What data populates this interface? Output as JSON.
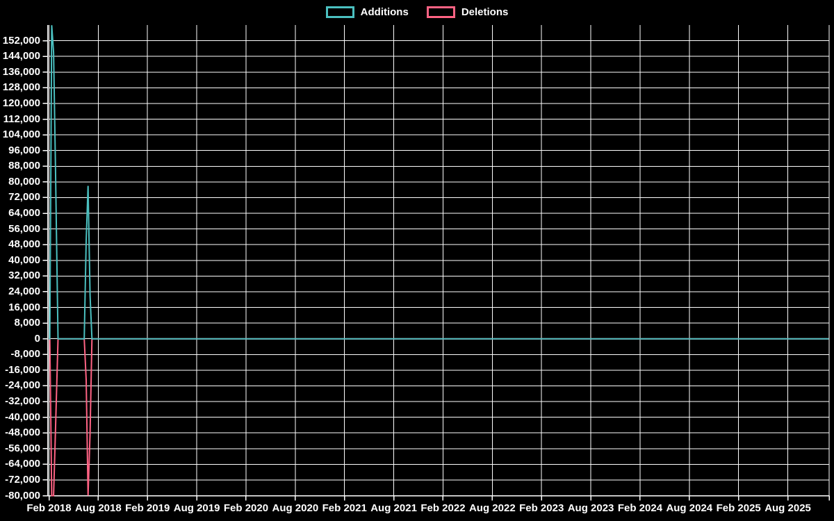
{
  "colors": {
    "background": "#000000",
    "grid": "#ffffff",
    "text": "#ffffff",
    "additions": "#4bc0c0",
    "deletions": "#ff6384"
  },
  "legend": {
    "items": [
      {
        "label": "Additions",
        "color": "#4bc0c0"
      },
      {
        "label": "Deletions",
        "color": "#ff6384"
      }
    ]
  },
  "chart_data": {
    "type": "line",
    "title": "",
    "legend_position": "top",
    "grid": true,
    "x_axis": {
      "start_date": "2018-02-01",
      "end_date": "2026-01-01",
      "tick_interval_months": 6,
      "tick_labels": [
        "Feb 2018",
        "Aug 2018",
        "Feb 2019",
        "Aug 2019",
        "Feb 2020",
        "Aug 2020",
        "Feb 2021",
        "Aug 2021",
        "Feb 2022",
        "Aug 2022",
        "Feb 2023",
        "Aug 2023",
        "Feb 2024",
        "Aug 2024",
        "Feb 2025",
        "Aug 2025"
      ]
    },
    "y_axis": {
      "min": -80000,
      "max": 160000,
      "tick_step": 8000,
      "tick_labels": [
        "152,000",
        "144,000",
        "136,000",
        "128,000",
        "120,000",
        "112,000",
        "104,000",
        "96,000",
        "88,000",
        "80,000",
        "72,000",
        "64,000",
        "56,000",
        "48,000",
        "40,000",
        "32,000",
        "24,000",
        "16,000",
        "8,000",
        "0",
        "-8,000",
        "-16,000",
        "-24,000",
        "-32,000",
        "-40,000",
        "-48,000",
        "-56,000",
        "-64,000",
        "-72,000",
        "-80,000"
      ]
    },
    "series": [
      {
        "name": "Deletions",
        "color": "#ff6384",
        "points": [
          {
            "date": "2018-02-01",
            "value": 0
          },
          {
            "date": "2018-02-04",
            "value": 0
          },
          {
            "date": "2018-02-11",
            "value": -83000
          },
          {
            "date": "2018-02-18",
            "value": -80000
          },
          {
            "date": "2018-02-25",
            "value": -47000
          },
          {
            "date": "2018-03-04",
            "value": 0
          },
          {
            "date": "2018-06-10",
            "value": 0
          },
          {
            "date": "2018-06-17",
            "value": -21000
          },
          {
            "date": "2018-06-24",
            "value": -83000
          },
          {
            "date": "2018-07-01",
            "value": -48000
          },
          {
            "date": "2018-07-08",
            "value": 0
          },
          {
            "date": "2026-01-01",
            "value": 0
          }
        ]
      },
      {
        "name": "Additions",
        "color": "#4bc0c0",
        "points": [
          {
            "date": "2018-02-01",
            "value": 0
          },
          {
            "date": "2018-02-04",
            "value": 0
          },
          {
            "date": "2018-02-11",
            "value": 159900
          },
          {
            "date": "2018-02-18",
            "value": 146000
          },
          {
            "date": "2018-02-25",
            "value": 88000
          },
          {
            "date": "2018-03-04",
            "value": 0
          },
          {
            "date": "2018-06-10",
            "value": 0
          },
          {
            "date": "2018-06-17",
            "value": 50000
          },
          {
            "date": "2018-06-24",
            "value": 78000
          },
          {
            "date": "2018-07-01",
            "value": 22000
          },
          {
            "date": "2018-07-08",
            "value": 0
          },
          {
            "date": "2026-01-01",
            "value": 0
          }
        ]
      }
    ]
  }
}
